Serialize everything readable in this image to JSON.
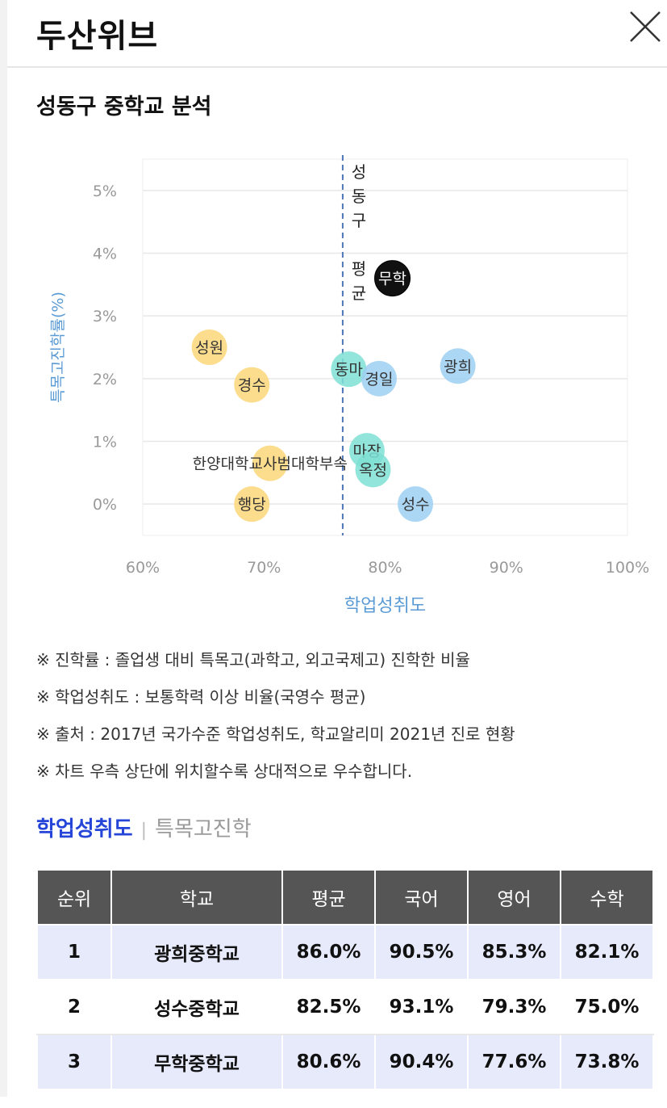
{
  "app_title": "두산위브",
  "section_title": "성동구 중학교 분석",
  "chart_data": {
    "type": "scatter",
    "xlabel": "학업성취도",
    "ylabel": "특목고진학률(%)",
    "xlim": [
      60,
      100
    ],
    "ylim": [
      -0.5,
      5.5
    ],
    "x_ticks": [
      "60%",
      "70%",
      "80%",
      "90%",
      "100%"
    ],
    "y_ticks": [
      "0%",
      "1%",
      "2%",
      "3%",
      "4%",
      "5%"
    ],
    "grid": true,
    "average_line": {
      "x": 76.5,
      "label": "성동구 평균"
    },
    "points": [
      {
        "name": "성원",
        "x": 65.5,
        "y": 2.5,
        "color": "#fcd77a"
      },
      {
        "name": "경수",
        "x": 69.0,
        "y": 1.9,
        "color": "#fcd77a"
      },
      {
        "name": "한양대학교사범대학부속",
        "x": 70.5,
        "y": 0.65,
        "color": "#fcd77a"
      },
      {
        "name": "행당",
        "x": 69.0,
        "y": 0.0,
        "color": "#fcd77a"
      },
      {
        "name": "동마",
        "x": 77.0,
        "y": 2.15,
        "color": "#7fe0d3"
      },
      {
        "name": "마장",
        "x": 78.5,
        "y": 0.85,
        "color": "#7fe0d3"
      },
      {
        "name": "옥정",
        "x": 79.0,
        "y": 0.55,
        "color": "#7fe0d3"
      },
      {
        "name": "경일",
        "x": 79.5,
        "y": 2.0,
        "color": "#9cd0f2"
      },
      {
        "name": "성수",
        "x": 82.5,
        "y": 0.0,
        "color": "#9cd0f2"
      },
      {
        "name": "광희",
        "x": 86.0,
        "y": 2.2,
        "color": "#9cd0f2"
      },
      {
        "name": "무학",
        "x": 80.6,
        "y": 3.6,
        "color": "#111111"
      }
    ]
  },
  "notes": [
    "※ 진학률 : 졸업생 대비 특목고(과학고, 외고국제고) 진학한 비율",
    "※ 학업성취도 : 보통학력 이상 비율(국영수 평균)",
    "※ 출처 : 2017년 국가수준 학업성취도, 학교알리미 2021년 진로 현황",
    "※ 차트 우측 상단에 위치할수록 상대적으로 우수합니다."
  ],
  "tabs": {
    "active": "학업성취도",
    "inactive": "특목고진학"
  },
  "colors": {
    "accent": "#2545d8",
    "axis_label": "#5b9bd5",
    "header_bg": "#555555",
    "row_highlight": "#e6eafb"
  },
  "table": {
    "headers": [
      "순위",
      "학교",
      "평균",
      "국어",
      "영어",
      "수학"
    ],
    "rows": [
      [
        "1",
        "광희중학교",
        "86.0%",
        "90.5%",
        "85.3%",
        "82.1%"
      ],
      [
        "2",
        "성수중학교",
        "82.5%",
        "93.1%",
        "79.3%",
        "75.0%"
      ],
      [
        "3",
        "무학중학교",
        "80.6%",
        "90.4%",
        "77.6%",
        "73.8%"
      ]
    ]
  }
}
